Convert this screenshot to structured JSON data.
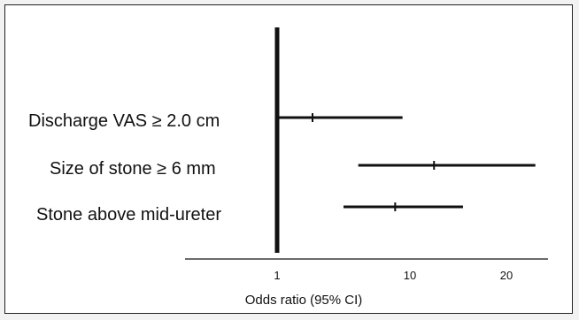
{
  "chart_data": {
    "type": "forest",
    "title": "",
    "xlabel": "Odds  ratio (95% CI)",
    "ylabel": "",
    "reference_value": 1,
    "x_ticks": [
      {
        "value": 1,
        "label": "1"
      },
      {
        "value": 10,
        "label": "10"
      },
      {
        "value": 20,
        "label": "20"
      }
    ],
    "categories": [
      "Discharge VAS  ≥ 2.0 cm",
      "Size of stone ≥ 6 mm",
      "Stone above mid-ureter"
    ],
    "series": [
      {
        "points": [
          {
            "category": "Discharge VAS  ≥ 2.0 cm",
            "estimate": 3.4,
            "lower": 1.0,
            "upper": 9.5
          },
          {
            "category": "Size of stone ≥ 6 mm",
            "estimate": 12.5,
            "lower": 6.5,
            "upper": 23.0
          },
          {
            "category": "Stone above mid-ureter",
            "estimate": 9.0,
            "lower": 5.5,
            "upper": 15.5
          }
        ]
      }
    ],
    "colors": {
      "ink": "#111111",
      "border": "#222222",
      "background": "#ffffff"
    }
  }
}
